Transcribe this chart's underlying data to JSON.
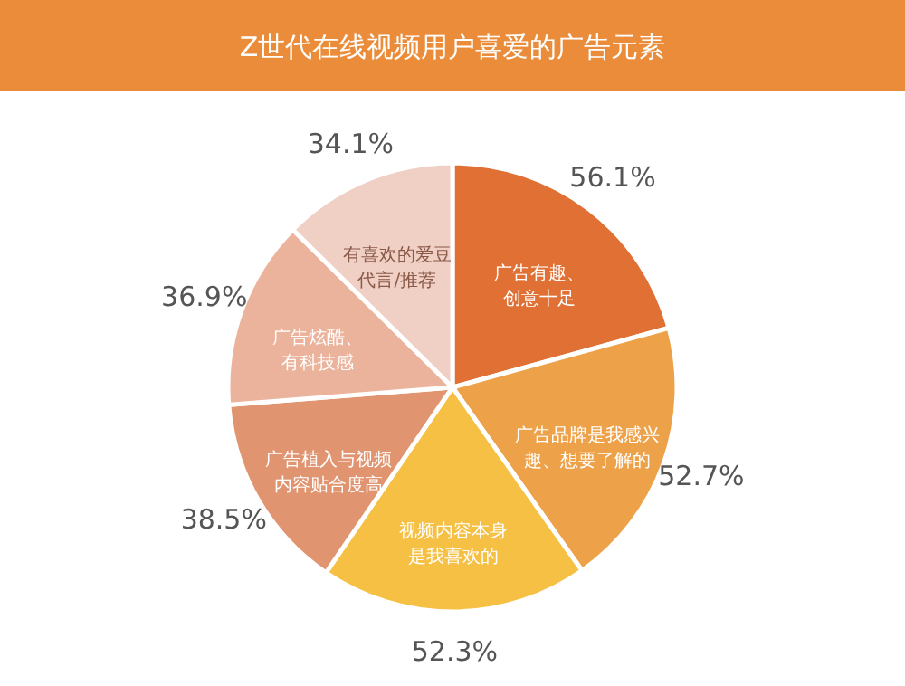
{
  "chart_data": {
    "type": "pie",
    "title": "Z世代在线视频用户喜爱的广告元素",
    "categories": [
      "广告有趣、创意十足",
      "广告品牌是我感兴趣、想要了解的",
      "视频内容本身是我喜欢的",
      "广告植入与视频内容贴合度高",
      "广告炫酷、有科技感",
      "有喜欢的爱豆代言/推荐"
    ],
    "values": [
      56.1,
      52.7,
      52.3,
      38.5,
      36.9,
      34.1
    ],
    "value_labels": [
      "56.1%",
      "52.7%",
      "52.3%",
      "38.5%",
      "36.9%",
      "34.1%"
    ],
    "colors": [
      "#e07033",
      "#eda24a",
      "#f5c043",
      "#e09470",
      "#ebb39b",
      "#f0cfc4"
    ]
  }
}
